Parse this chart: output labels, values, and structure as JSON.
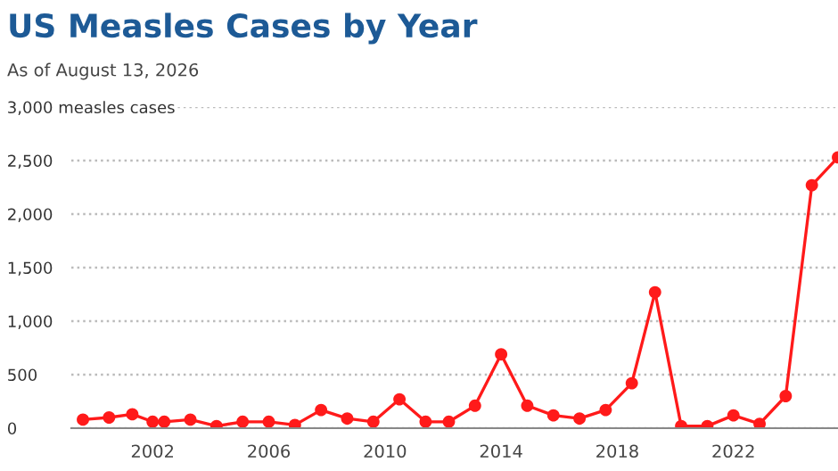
{
  "chart_data": {
    "type": "line",
    "title": "US Measles Cases by Year",
    "subtitle": "As of August 13, 2026",
    "x": [
      1999.6,
      2000.5,
      2001.3,
      2002.0,
      2002.4,
      2003.3,
      2004.2,
      2005.1,
      2006.0,
      2006.9,
      2007.8,
      2008.7,
      2009.6,
      2010.5,
      2011.4,
      2012.2,
      2013.1,
      2014.0,
      2014.9,
      2015.8,
      2016.7,
      2017.6,
      2018.5,
      2019.3,
      2020.2,
      2021.1,
      2022.0,
      2022.9,
      2023.8,
      2024.7,
      2025.6
    ],
    "series": [
      {
        "color": "#ff1a1a",
        "values": [
          80,
          100,
          130,
          60,
          60,
          80,
          20,
          60,
          60,
          30,
          170,
          90,
          60,
          270,
          60,
          60,
          210,
          690,
          210,
          120,
          90,
          170,
          420,
          1270,
          20,
          20,
          120,
          40,
          300,
          2270,
          2530
        ]
      }
    ],
    "xlim": [
      1999.2,
      2025.6
    ],
    "xticks": [
      2002,
      2006,
      2010,
      2014,
      2018,
      2022
    ],
    "ylim": [
      0,
      3000
    ],
    "yticks": [
      0,
      {
        "value": 500,
        "label": "500"
      },
      {
        "value": 1000,
        "label": "1,000"
      },
      {
        "value": 1500,
        "label": "1,500"
      },
      {
        "value": 2000,
        "label": "2,000"
      },
      {
        "value": 2500,
        "label": "2,500"
      },
      {
        "value": 3000,
        "label": "3,000 measles cases"
      }
    ],
    "grid": "y",
    "marker": "circle",
    "line_style": "solid",
    "legend": false
  }
}
